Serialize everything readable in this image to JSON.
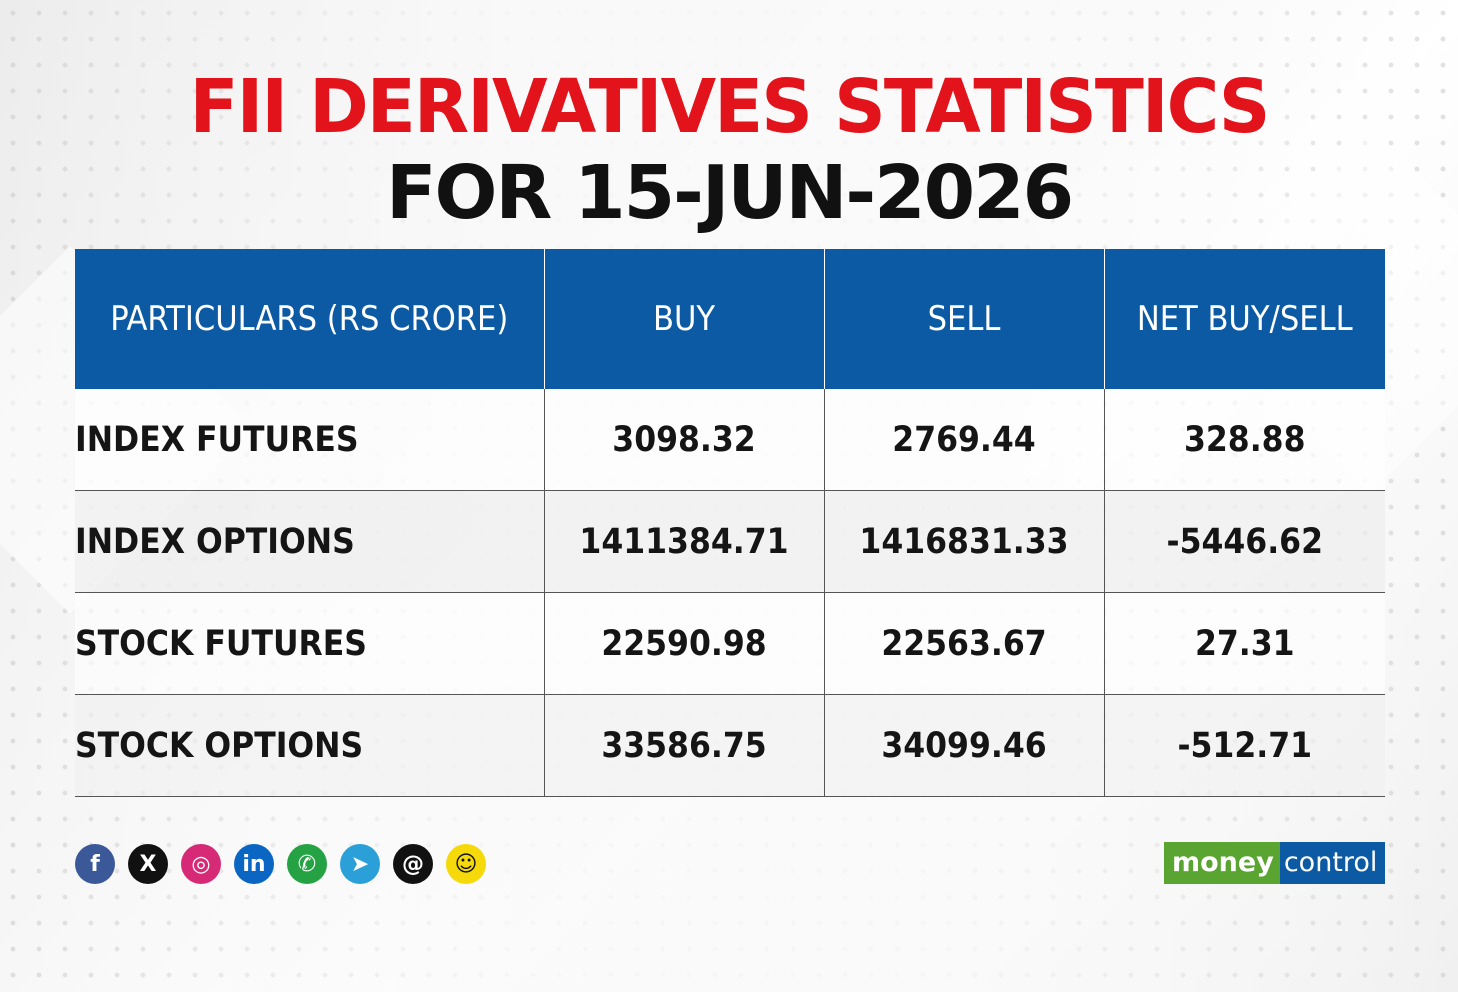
{
  "title": {
    "line1": "FII DERIVATIVES STATISTICS",
    "line2": "FOR 15-JUN-2026"
  },
  "table": {
    "headers": [
      "PARTICULARS (RS CRORE)",
      "BUY",
      "SELL",
      "NET BUY/SELL"
    ],
    "rows": [
      {
        "particular": "INDEX FUTURES",
        "buy": "3098.32",
        "sell": "2769.44",
        "net": "328.88"
      },
      {
        "particular": "INDEX OPTIONS",
        "buy": "1411384.71",
        "sell": "1416831.33",
        "net": "-5446.62"
      },
      {
        "particular": "STOCK FUTURES",
        "buy": "22590.98",
        "sell": "22563.67",
        "net": "27.31"
      },
      {
        "particular": "STOCK OPTIONS",
        "buy": "33586.75",
        "sell": "34099.46",
        "net": "-512.71"
      }
    ]
  },
  "social_icons": [
    {
      "name": "facebook-icon",
      "glyph": "f",
      "color": "#3b5998"
    },
    {
      "name": "x-icon",
      "glyph": "X",
      "color": "#111111"
    },
    {
      "name": "instagram-icon",
      "glyph": "◎",
      "color": "#d62976"
    },
    {
      "name": "linkedin-icon",
      "glyph": "in",
      "color": "#0a66c2"
    },
    {
      "name": "whatsapp-icon",
      "glyph": "✆",
      "color": "#25a244"
    },
    {
      "name": "telegram-icon",
      "glyph": "➤",
      "color": "#2a9fd8"
    },
    {
      "name": "threads-icon",
      "glyph": "@",
      "color": "#111111"
    },
    {
      "name": "snapchat-icon",
      "glyph": "☺",
      "color": "#f5d90a"
    }
  ],
  "brand": {
    "part1": "money",
    "part2": "control",
    "colors": {
      "green": "#5aa531",
      "blue": "#0b5aa3",
      "red": "#e3131b"
    }
  }
}
